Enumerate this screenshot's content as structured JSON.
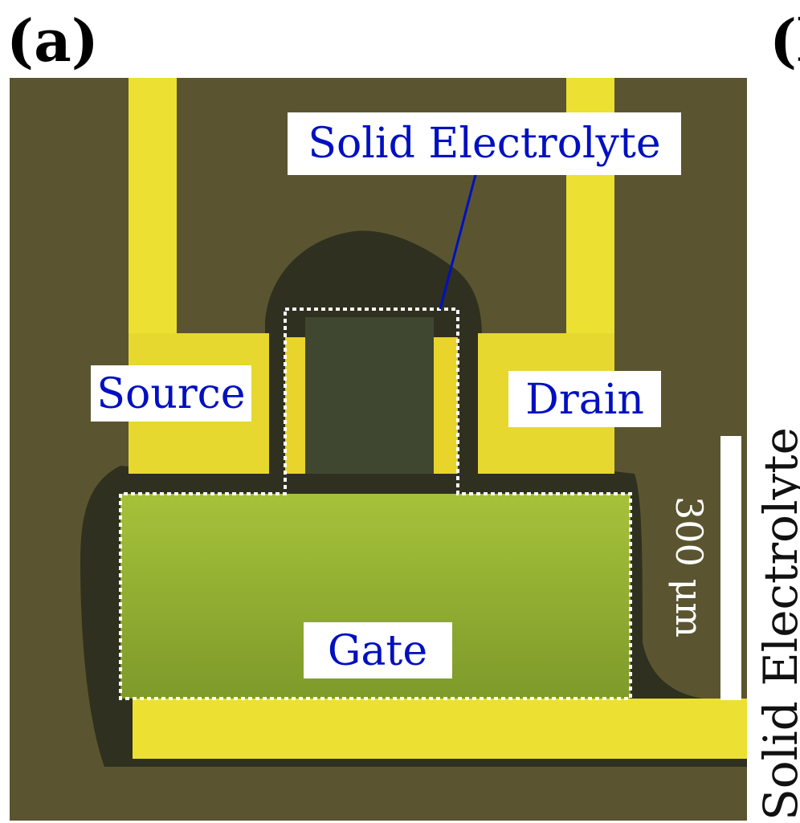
{
  "panel_a": {
    "label": "(a)",
    "callouts": {
      "electrolyte": "Solid Electrolyte",
      "source": "Source",
      "drain": "Drain",
      "gate": "Gate"
    },
    "scale_bar": "300 μm"
  },
  "panel_b": {
    "label": "(b",
    "axis_label": "Solid Electrolyte"
  }
}
